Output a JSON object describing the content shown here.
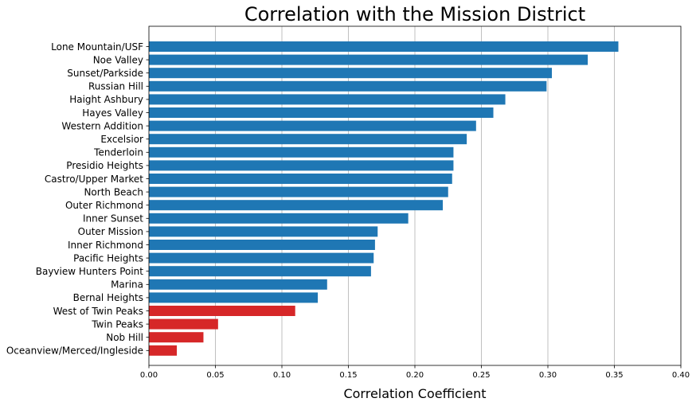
{
  "chart_data": {
    "type": "bar",
    "orientation": "horizontal",
    "title": "Correlation with the Mission District",
    "xlabel": "Correlation Coefficient",
    "ylabel": "",
    "xlim": [
      0,
      0.4
    ],
    "xticks": [
      "0.00",
      "0.05",
      "0.10",
      "0.15",
      "0.20",
      "0.25",
      "0.30",
      "0.35",
      "0.40"
    ],
    "grid": "vertical",
    "colors": {
      "high": "#1f77b4",
      "low": "#d62728"
    },
    "categories": [
      "Lone Mountain/USF",
      "Noe Valley",
      "Sunset/Parkside",
      "Russian Hill",
      "Haight Ashbury",
      "Hayes Valley",
      "Western Addition",
      "Excelsior",
      "Tenderloin",
      "Presidio Heights",
      "Castro/Upper Market",
      "North Beach",
      "Outer Richmond",
      "Inner Sunset",
      "Outer Mission",
      "Inner Richmond",
      "Pacific Heights",
      "Bayview Hunters Point",
      "Marina",
      "Bernal Heights",
      "West of Twin Peaks",
      "Twin Peaks",
      "Nob Hill",
      "Oceanview/Merced/Ingleside"
    ],
    "values": [
      0.353,
      0.33,
      0.303,
      0.299,
      0.268,
      0.259,
      0.246,
      0.239,
      0.229,
      0.229,
      0.228,
      0.225,
      0.221,
      0.195,
      0.172,
      0.17,
      0.169,
      0.167,
      0.134,
      0.127,
      0.11,
      0.052,
      0.041,
      0.021
    ],
    "bar_colors": [
      "high",
      "high",
      "high",
      "high",
      "high",
      "high",
      "high",
      "high",
      "high",
      "high",
      "high",
      "high",
      "high",
      "high",
      "high",
      "high",
      "high",
      "high",
      "high",
      "high",
      "low",
      "low",
      "low",
      "low"
    ]
  }
}
